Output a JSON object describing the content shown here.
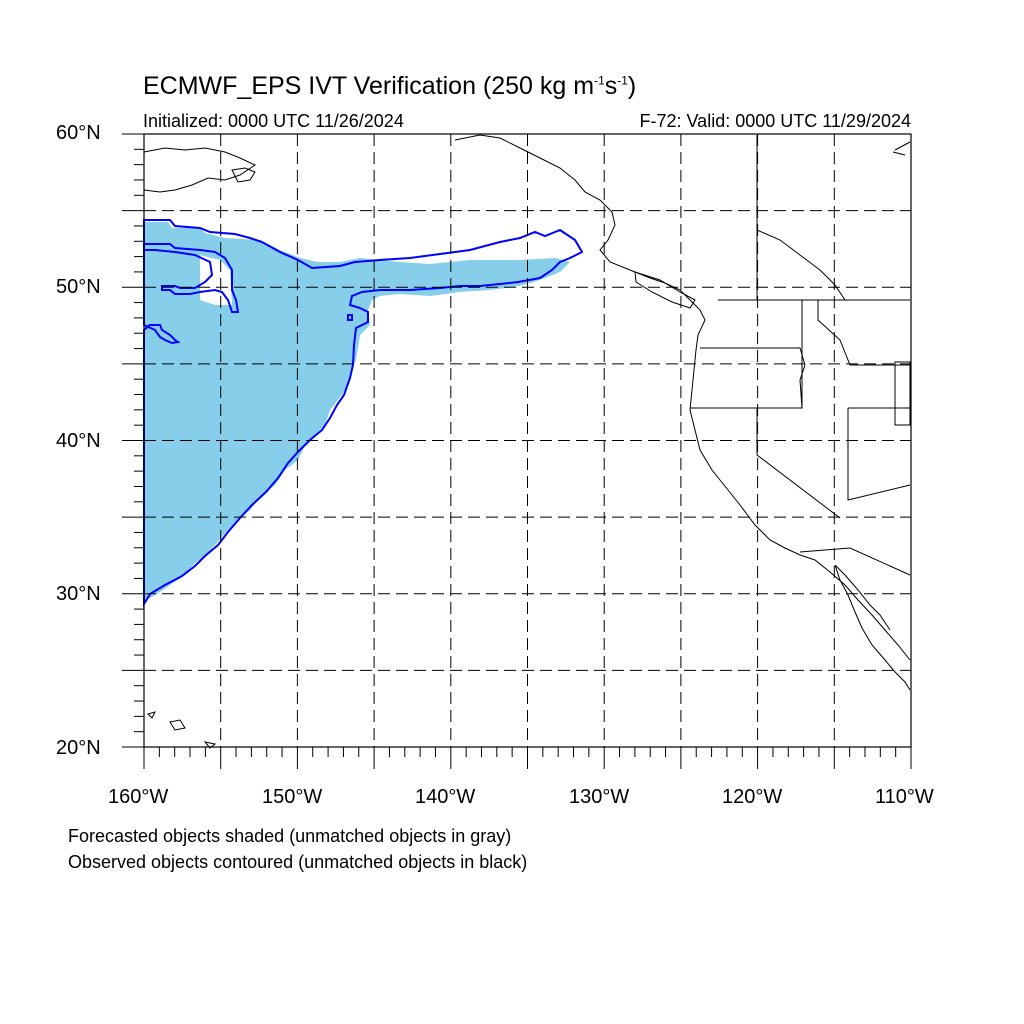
{
  "figure": {
    "title_main": "ECMWF_EPS IVT Verification (250 kg m",
    "title_sup1": "-1",
    "title_mid": "s",
    "title_sup2": "-1",
    "title_end": ")",
    "subtitle_left": "Initialized: 0000 UTC 11/26/2024",
    "subtitle_right": "F-72: Valid: 0000 UTC 11/29/2024",
    "caption_line1": "Forecasted objects shaded (unmatched objects in gray)",
    "caption_line2": "Observed objects contoured (unmatched objects in black)"
  },
  "map": {
    "lon_range": [
      -160,
      -110
    ],
    "lat_range": [
      20,
      60
    ],
    "lon_labels": [
      "160°W",
      "150°W",
      "140°W",
      "130°W",
      "120°W",
      "110°W"
    ],
    "lat_labels": [
      "20°N",
      "30°N",
      "40°N",
      "50°N",
      "60°N"
    ],
    "grid_lines": "dashed every 5 degrees",
    "colors": {
      "forecast_fill": "#87CEEB",
      "observed_contour": "#0000FF",
      "coastline": "#000000",
      "grid": "#000000"
    }
  }
}
